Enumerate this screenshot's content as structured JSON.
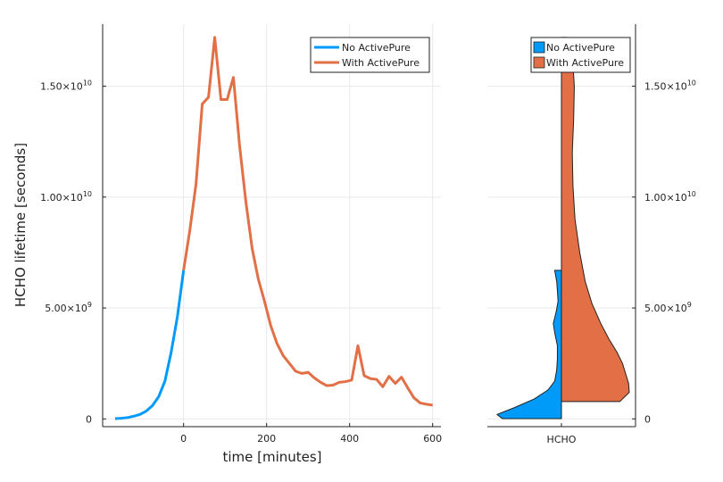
{
  "colors": {
    "no_activepure": "#009af9",
    "with_activepure": "#e26f46",
    "axis": "#222222",
    "grid": "#e9e9e9"
  },
  "chart_data": [
    {
      "type": "line",
      "xlabel": "time [minutes]",
      "ylabel": "HCHO lifetime [seconds]",
      "xlim": [
        -195,
        620
      ],
      "ylim": [
        -350000000.0,
        17800000000.0
      ],
      "grid": true,
      "legend_position": "top-right",
      "x_ticks": [
        {
          "value": 0,
          "label": "0"
        },
        {
          "value": 200,
          "label": "200"
        },
        {
          "value": 400,
          "label": "400"
        },
        {
          "value": 600,
          "label": "600"
        }
      ],
      "y_ticks": [
        {
          "value": 0,
          "mantissa": "0",
          "exp": ""
        },
        {
          "value": 5000000000.0,
          "mantissa": "5.00×10",
          "exp": "9"
        },
        {
          "value": 10000000000.0,
          "mantissa": "1.00×10",
          "exp": "10"
        },
        {
          "value": 15000000000.0,
          "mantissa": "1.50×10",
          "exp": "10"
        }
      ],
      "series": [
        {
          "name": "No ActivePure",
          "color": "#009af9",
          "x": [
            -165,
            -150,
            -135,
            -120,
            -105,
            -90,
            -75,
            -60,
            -45,
            -30,
            -15,
            0
          ],
          "y": [
            10000000.0,
            30000000.0,
            60000000.0,
            120000000.0,
            200000000.0,
            350000000.0,
            600000000.0,
            1000000000.0,
            1700000000.0,
            3000000000.0,
            4600000000.0,
            6700000000.0
          ]
        },
        {
          "name": "With ActivePure",
          "color": "#e26f46",
          "x": [
            0,
            15,
            30,
            45,
            60,
            75,
            90,
            105,
            120,
            135,
            150,
            165,
            180,
            195,
            210,
            225,
            240,
            255,
            270,
            285,
            300,
            315,
            330,
            345,
            360,
            375,
            390,
            405,
            420,
            435,
            450,
            465,
            480,
            495,
            510,
            525,
            540,
            555,
            570,
            585,
            600
          ],
          "y": [
            6700000000.0,
            8500000000.0,
            10600000000.0,
            14200000000.0,
            14500000000.0,
            17200000000.0,
            14400000000.0,
            14400000000.0,
            15400000000.0,
            12300000000.0,
            9800000000.0,
            7700000000.0,
            6300000000.0,
            5300000000.0,
            4200000000.0,
            3400000000.0,
            2850000000.0,
            2500000000.0,
            2150000000.0,
            2050000000.0,
            2100000000.0,
            1850000000.0,
            1650000000.0,
            1500000000.0,
            1520000000.0,
            1650000000.0,
            1680000000.0,
            1750000000.0,
            3300000000.0,
            1950000000.0,
            1820000000.0,
            1780000000.0,
            1450000000.0,
            1920000000.0,
            1600000000.0,
            1880000000.0,
            1400000000.0,
            950000000.0,
            720000000.0,
            660000000.0,
            620000000.0
          ]
        }
      ]
    },
    {
      "type": "violin",
      "category": "HCHO",
      "ylim": [
        -350000000.0,
        17800000000.0
      ],
      "legend_position": "top-right",
      "y_ticks": [
        {
          "value": 0,
          "mantissa": "0",
          "exp": ""
        },
        {
          "value": 5000000000.0,
          "mantissa": "5.00×10",
          "exp": "9"
        },
        {
          "value": 10000000000.0,
          "mantissa": "1.00×10",
          "exp": "10"
        },
        {
          "value": 15000000000.0,
          "mantissa": "1.50×10",
          "exp": "10"
        }
      ],
      "series": [
        {
          "name": "No ActivePure",
          "side": "left",
          "color": "#009af9",
          "density_y": [
            10000000.0,
            200000000.0,
            500000000.0,
            900000000.0,
            1300000000.0,
            1700000000.0,
            2200000000.0,
            2700000000.0,
            3300000000.0,
            3900000000.0,
            4300000000.0,
            4800000000.0,
            5300000000.0,
            5800000000.0,
            6200000000.0,
            6700000000.0
          ],
          "density": [
            0.87,
            0.95,
            0.7,
            0.4,
            0.2,
            0.1,
            0.07,
            0.06,
            0.06,
            0.1,
            0.12,
            0.08,
            0.05,
            0.06,
            0.07,
            0.1
          ]
        },
        {
          "name": "With ActivePure",
          "side": "right",
          "color": "#e26f46",
          "density_y": [
            780000000.0,
            1200000000.0,
            1600000000.0,
            2000000000.0,
            2500000000.0,
            3000000000.0,
            3600000000.0,
            4300000000.0,
            5200000000.0,
            6200000000.0,
            7500000000.0,
            9000000000.0,
            10500000000.0,
            12000000000.0,
            13500000000.0,
            15000000000.0,
            16000000000.0,
            16800000000.0,
            17200000000.0
          ],
          "density": [
            0.86,
            1.0,
            0.99,
            0.95,
            0.9,
            0.82,
            0.7,
            0.58,
            0.45,
            0.35,
            0.27,
            0.2,
            0.17,
            0.16,
            0.18,
            0.19,
            0.17,
            0.13,
            0.08
          ]
        }
      ]
    }
  ]
}
